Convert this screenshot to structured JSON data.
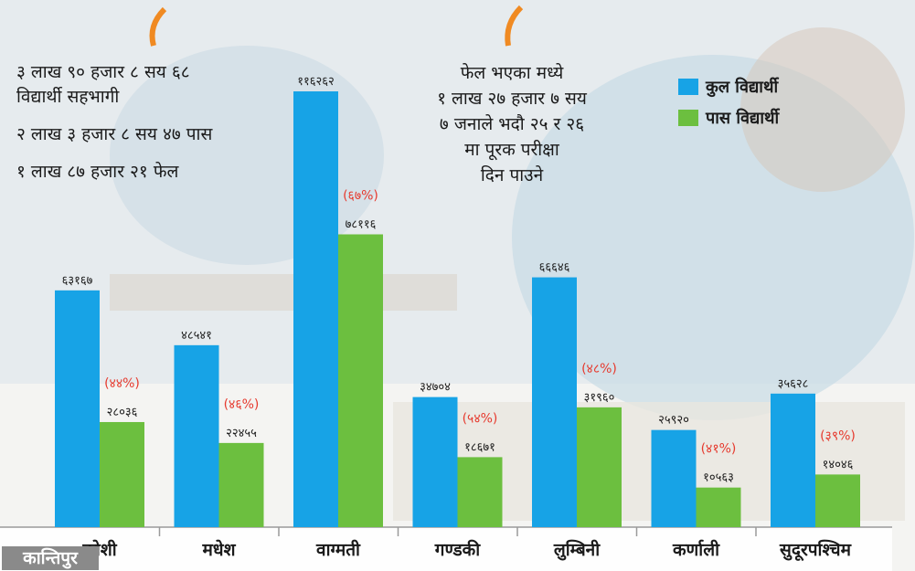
{
  "header": {
    "participants_line1": "३ लाख ९० हजार ८ सय ६८",
    "participants_line2": "विद्यार्थी सहभागी",
    "passed": "२ लाख ३ हजार ८ सय ४७ पास",
    "failed": "१ लाख ८७ हजार २१ फेल"
  },
  "fail_note": {
    "line1": "फेल भएका मध्ये",
    "line2": "१ लाख २७ हजार ७ सय",
    "line3": "७ जनाले भदौ २५ र २६",
    "line4": "मा पूरक परीक्षा",
    "line5": "दिन पाउने"
  },
  "legend": {
    "total_label": "कुल विद्यार्थी",
    "pass_label": "पास विद्यार्थी"
  },
  "brand": "कान्तिपुर",
  "colors": {
    "total": "#17a3e6",
    "pass": "#6cbf3f",
    "percent": "#e63a2e",
    "background_art": "#dfe6ea"
  },
  "chart_data": {
    "type": "bar",
    "categories": [
      "कोशी",
      "मधेश",
      "वाग्मती",
      "गण्डकी",
      "लुम्बिनी",
      "कर्णाली",
      "सुदूरपश्चिम"
    ],
    "series": [
      {
        "name": "कुल विद्यार्थी",
        "values": [
          63167,
          48541,
          116262,
          34704,
          66646,
          25920,
          35628
        ],
        "labels": [
          "६३१६७",
          "४८५४१",
          "११६२६२",
          "३४७०४",
          "६६६४६",
          "२५९२०",
          "३५६२८"
        ]
      },
      {
        "name": "पास विद्यार्थी",
        "values": [
          28036,
          22455,
          78116,
          18671,
          31960,
          10563,
          14046
        ],
        "labels": [
          "२८०३६",
          "२२४५५",
          "७८११६",
          "१८६७१",
          "३१९६०",
          "१०५६३",
          "१४०४६"
        ]
      }
    ],
    "pass_percent_labels": [
      "(४४%)",
      "(४६%)",
      "(६७%)",
      "(५४%)",
      "(४८%)",
      "(४१%)",
      "(३९%)"
    ],
    "ylim": [
      0,
      116262
    ],
    "grid": false,
    "legend": "top-right"
  }
}
